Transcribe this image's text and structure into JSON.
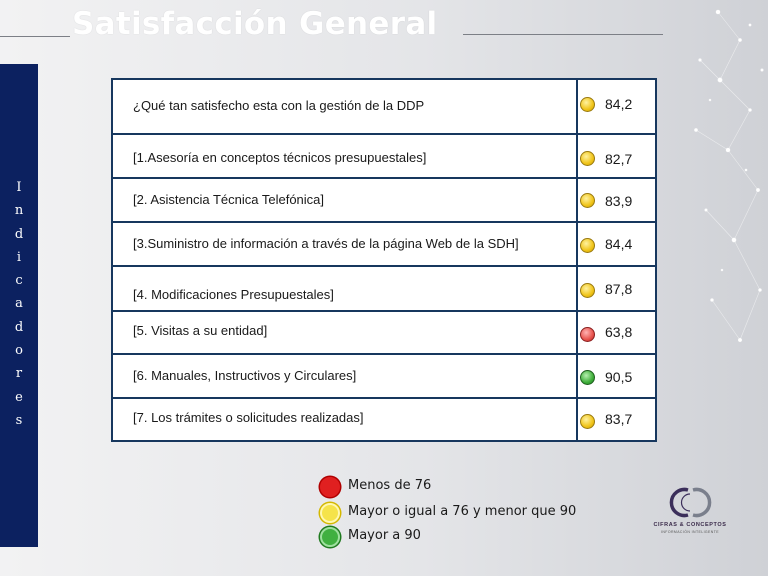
{
  "slide": {
    "title": "Satisfacción General",
    "side_label_letters": [
      "I",
      "n",
      "d",
      "i",
      "c",
      "a",
      "d",
      "o",
      "r",
      "e",
      "s"
    ]
  },
  "table": {
    "rows": [
      {
        "label": "¿Qué  tan satisfecho esta con la gestión de la DDP",
        "value": "84,2",
        "status": "yellow"
      },
      {
        "label": "[1.Asesoría en conceptos técnicos presupuestales]",
        "value": "82,7",
        "status": "yellow"
      },
      {
        "label": "[2. Asistencia Técnica Telefónica]",
        "value": "83,9",
        "status": "yellow"
      },
      {
        "label": "[3.Suministro de información a través de la página Web de la SDH]",
        "value": "84,4",
        "status": "yellow"
      },
      {
        "label": "[4. Modificaciones Presupuestales]",
        "value": "87,8",
        "status": "yellow"
      },
      {
        "label": "[5. Visitas a  su entidad]",
        "value": "63,8",
        "status": "red"
      },
      {
        "label": "[6. Manuales, Instructivos y Circulares]",
        "value": "90,5",
        "status": "green"
      },
      {
        "label": "[7. Los trámites o solicitudes realizadas]",
        "value": "83,7",
        "status": "yellow"
      }
    ]
  },
  "legend": {
    "items": [
      {
        "color": "red",
        "text": "Menos de 76"
      },
      {
        "color": "yellow",
        "text": "Mayor o igual a 76 y menor que 90"
      },
      {
        "color": "green",
        "text": "Mayor a 90"
      }
    ]
  },
  "logo": {
    "name": "CIFRAS & CONCEPTOS",
    "tagline": "INFORMACIÓN INTELIGENTE",
    "icon": "cc-logo-icon"
  },
  "colors": {
    "navy": "#0c2160",
    "table_border": "#17375e",
    "red": "#e8544e",
    "yellow": "#f0c419",
    "green": "#3fae3a"
  }
}
